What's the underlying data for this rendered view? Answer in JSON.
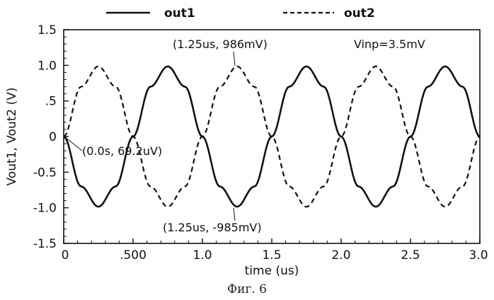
{
  "chart_data": {
    "type": "line",
    "title": "",
    "xlabel": "time (us)",
    "ylabel": "Vout1, Vout2 (V)",
    "xlim": [
      0,
      3.0
    ],
    "ylim": [
      -1.5,
      1.5
    ],
    "x_ticks": [
      0,
      0.5,
      1.0,
      1.5,
      2.0,
      2.5,
      3.0
    ],
    "x_tick_labels": [
      "0",
      ".500",
      "1.0",
      "1.5",
      "2.0",
      "2.5",
      "3.0"
    ],
    "y_ticks": [
      1.5,
      1.0,
      0.5,
      0,
      -0.5,
      -1.0,
      -1.5
    ],
    "y_tick_labels": [
      "1.5",
      "1.0",
      ".5",
      "0",
      "-0.5",
      "-1.0",
      "-1.5"
    ],
    "grid": false,
    "legend_position": "top",
    "series": [
      {
        "name": "out1",
        "style": "solid",
        "x": [
          0,
          0.125,
          0.25,
          0.375,
          0.5,
          0.625,
          0.75,
          0.875,
          1.0,
          1.125,
          1.25,
          1.375,
          1.5,
          1.625,
          1.75,
          1.875,
          2.0,
          2.125,
          2.25,
          2.375,
          2.5,
          2.625,
          2.75,
          2.875,
          3.0
        ],
        "values": [
          0.0,
          -0.7,
          -0.985,
          -0.7,
          0.0,
          0.7,
          0.985,
          0.7,
          0.0,
          -0.7,
          -0.985,
          -0.7,
          0.0,
          0.7,
          0.985,
          0.7,
          0.0,
          -0.7,
          -0.985,
          -0.7,
          0.0,
          0.7,
          0.985,
          0.7,
          0.0
        ]
      },
      {
        "name": "out2",
        "style": "dashed",
        "x": [
          0,
          0.125,
          0.25,
          0.375,
          0.5,
          0.625,
          0.75,
          0.875,
          1.0,
          1.125,
          1.25,
          1.375,
          1.5,
          1.625,
          1.75,
          1.875,
          2.0,
          2.125,
          2.25,
          2.375,
          2.5,
          2.625,
          2.75,
          2.875,
          3.0
        ],
        "values": [
          0.0,
          0.7,
          0.986,
          0.7,
          0.0,
          -0.7,
          -0.986,
          -0.7,
          0.0,
          0.7,
          0.986,
          0.7,
          0.0,
          -0.7,
          -0.986,
          -0.7,
          0.0,
          0.7,
          0.986,
          0.7,
          0.0,
          -0.7,
          -0.986,
          -0.7,
          0.0
        ]
      }
    ],
    "annotations": [
      {
        "text": "(1.25us, 986mV)",
        "x": 1.25,
        "y": 0.986
      },
      {
        "text": "(0.0s, 69.2uV)",
        "x": 0.0,
        "y": 6.92e-05
      },
      {
        "text": "(1.25us, -985mV)",
        "x": 1.25,
        "y": -0.985
      }
    ],
    "inset_text": "Vinp=3.5mV"
  },
  "figure_caption": "Фиг. 6"
}
